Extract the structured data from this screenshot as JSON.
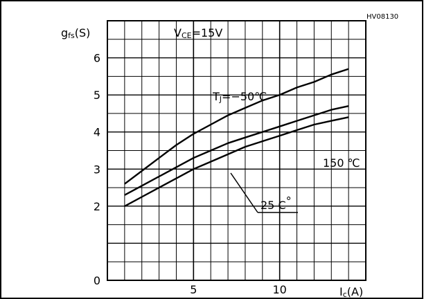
{
  "header": {
    "code": "HV08130"
  },
  "chart_data": {
    "type": "line",
    "ylabel_main": "g",
    "ylabel_sub": "fs",
    "ylabel_unit": "(S)",
    "xlabel_main": "I",
    "xlabel_sub": "c",
    "xlabel_unit": "(A)",
    "xlim": [
      0,
      15
    ],
    "ylim": [
      0,
      7
    ],
    "xticks": [
      {
        "value": 5,
        "label": "5"
      },
      {
        "value": 10,
        "label": "10"
      }
    ],
    "yticks": [
      {
        "value": 0,
        "label": "0"
      },
      {
        "value": 2,
        "label": "2"
      },
      {
        "value": 3,
        "label": "3"
      },
      {
        "value": 4,
        "label": "4"
      },
      {
        "value": 5,
        "label": "5"
      },
      {
        "value": 6,
        "label": "6"
      }
    ],
    "grid": true,
    "condition": {
      "main": "V",
      "sub": "CE",
      "value": "=15V"
    },
    "series": [
      {
        "name": "TJ=-50°C",
        "label_parts": {
          "main": "T",
          "sub": "J",
          "value": "=−50℃"
        },
        "x": [
          1,
          2,
          3,
          4,
          5,
          6,
          7,
          8,
          9,
          10,
          11,
          12,
          13,
          14
        ],
        "y": [
          2.6,
          2.95,
          3.3,
          3.65,
          3.95,
          4.2,
          4.45,
          4.65,
          4.85,
          5.0,
          5.2,
          5.35,
          5.55,
          5.7
        ]
      },
      {
        "name": "25 °C",
        "label_parts": {
          "main": "25 C",
          "sub": "",
          "value": "°"
        },
        "x": [
          1,
          2,
          3,
          4,
          5,
          6,
          7,
          8,
          9,
          10,
          11,
          12,
          13,
          14
        ],
        "y": [
          2.3,
          2.55,
          2.8,
          3.05,
          3.3,
          3.5,
          3.7,
          3.85,
          4.0,
          4.15,
          4.3,
          4.45,
          4.6,
          4.7
        ]
      },
      {
        "name": "150 ℃",
        "label_parts": {
          "main": "150 ℃",
          "sub": "",
          "value": ""
        },
        "x": [
          1,
          2,
          3,
          4,
          5,
          6,
          7,
          8,
          9,
          10,
          11,
          12,
          13,
          14
        ],
        "y": [
          2.0,
          2.25,
          2.5,
          2.75,
          3.0,
          3.2,
          3.4,
          3.6,
          3.75,
          3.9,
          4.05,
          4.2,
          4.3,
          4.4
        ]
      }
    ]
  }
}
